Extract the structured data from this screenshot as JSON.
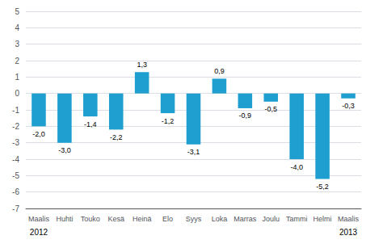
{
  "chart_data": {
    "type": "bar",
    "categories": [
      "Maalis",
      "Huhti",
      "Touko",
      "Kesä",
      "Heinä",
      "Elo",
      "Syys",
      "Loka",
      "Marras",
      "Joulu",
      "Tammi",
      "Helmi",
      "Maalis"
    ],
    "values": [
      -2.0,
      -3.0,
      -1.4,
      -2.2,
      1.3,
      -1.2,
      -3.1,
      0.9,
      -0.9,
      -0.5,
      -4.0,
      -5.2,
      -0.3
    ],
    "value_labels": [
      "-2,0",
      "-3,0",
      "-1,4",
      "-2,2",
      "1,3",
      "-1,2",
      "-3,1",
      "0,9",
      "-0,9",
      "-0,5",
      "-4,0",
      "-5,2",
      "-0,3"
    ],
    "data_labels": true,
    "color": "#1f9fd0",
    "ylim": [
      -7,
      5
    ],
    "yticks": [
      -7,
      -6,
      -5,
      -4,
      -3,
      -2,
      -1,
      0,
      1,
      2,
      3,
      4,
      5
    ],
    "grid": true,
    "annotations": [
      {
        "text": "2012",
        "category_index": 0
      },
      {
        "text": "2013",
        "category_index": 12
      }
    ]
  }
}
